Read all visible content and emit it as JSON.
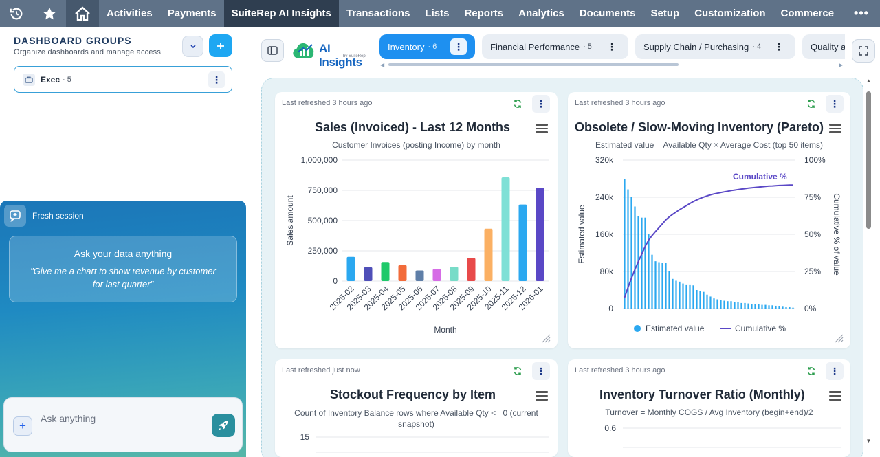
{
  "nav": {
    "icons": [
      "history-icon",
      "star-icon",
      "home-icon"
    ],
    "items": [
      "Activities",
      "Payments",
      "SuiteRep AI Insights",
      "Transactions",
      "Lists",
      "Reports",
      "Analytics",
      "Documents",
      "Setup",
      "Customization",
      "Commerce"
    ],
    "active": "SuiteRep AI Insights",
    "more": "•••"
  },
  "sidebar": {
    "title": "DASHBOARD GROUPS",
    "subtitle": "Organize dashboards and manage access",
    "groups": [
      {
        "name": "Exec",
        "count": "· 5"
      }
    ]
  },
  "chat": {
    "session_label": "Fresh session",
    "prompt_title": "Ask your data anything",
    "prompt_example": "\"Give me a chart to show revenue by customer for last quarter\"",
    "input_placeholder": "Ask anything"
  },
  "brand": {
    "name": "AI Insights",
    "sub": "by SuiteRep"
  },
  "tabs": [
    {
      "label": "Inventory",
      "count": "· 6",
      "active": true
    },
    {
      "label": "Financial Performance",
      "count": "· 5",
      "active": false
    },
    {
      "label": "Supply Chain / Purchasing",
      "count": "· 4",
      "active": false
    },
    {
      "label": "Quality a",
      "count": "",
      "active": false
    }
  ],
  "cards": [
    {
      "refreshed": "Last refreshed 3 hours ago",
      "title": "Sales (Invoiced) - Last 12 Months",
      "subtitle": "Customer Invoices (posting Income) by month"
    },
    {
      "refreshed": "Last refreshed 3 hours ago",
      "title": "Obsolete / Slow-Moving Inventory (Pareto)",
      "subtitle": "Estimated value = Available Qty × Average Cost (top 50 items)"
    },
    {
      "refreshed": "Last refreshed just now",
      "title": "Stockout Frequency by Item",
      "subtitle": "Count of Inventory Balance rows where Available Qty <= 0 (current snapshot)"
    },
    {
      "refreshed": "Last refreshed 3 hours ago",
      "title": "Inventory Turnover Ratio (Monthly)",
      "subtitle": "Turnover = Monthly COGS / Avg Inventory (begin+end)/2"
    }
  ],
  "chart_data": [
    {
      "type": "bar",
      "title": "Sales (Invoiced) - Last 12 Months",
      "subtitle": "Customer Invoices (posting Income) by month",
      "xlabel": "Month",
      "ylabel": "Sales amount",
      "categories": [
        "2025-02",
        "2025-03",
        "2025-04",
        "2025-05",
        "2025-06",
        "2025-07",
        "2025-08",
        "2025-09",
        "2025-10",
        "2025-11",
        "2025-12",
        "2026-01"
      ],
      "values": [
        200000,
        115000,
        158000,
        132000,
        88000,
        100000,
        118000,
        190000,
        433000,
        858000,
        633000,
        772000
      ],
      "colors": [
        "#2ba8f0",
        "#4f4fb8",
        "#1fc96a",
        "#f26b3a",
        "#5f7fa8",
        "#d66ce6",
        "#78dcc8",
        "#e84a4a",
        "#fbb063",
        "#7fe0d6",
        "#2ba8f0",
        "#5a48c6"
      ],
      "ylim": [
        0,
        1000000
      ],
      "yticks": [
        "1,000,000",
        "750,000",
        "500,000",
        "250,000",
        "0"
      ],
      "grid": true
    },
    {
      "type": "bar",
      "title": "Obsolete / Slow-Moving Inventory (Pareto)",
      "subtitle": "Estimated value = Available Qty × Average Cost (top 50 items)",
      "ylabel": "Estimated value",
      "y2label": "Cumulative % of value",
      "ylim": [
        0,
        320000
      ],
      "y2lim": [
        0,
        100
      ],
      "yticks": [
        "320k",
        "240k",
        "160k",
        "80k",
        "0"
      ],
      "y2ticks": [
        "100%",
        "75%",
        "50%",
        "25%",
        "0%"
      ],
      "series": [
        {
          "name": "Estimated value",
          "type": "bar",
          "color": "#2ba8f0",
          "values": [
            280000,
            257000,
            240000,
            220000,
            200000,
            196000,
            196000,
            160000,
            116000,
            102000,
            100000,
            98000,
            98000,
            80000,
            64000,
            60000,
            58000,
            54000,
            52000,
            52000,
            50000,
            40000,
            38000,
            36000,
            30000,
            26000,
            22000,
            20000,
            18000,
            17000,
            16000,
            16000,
            14000,
            14000,
            12000,
            12000,
            11000,
            10000,
            9000,
            9000,
            8000,
            8000,
            7000,
            7000,
            6000,
            5000,
            4000,
            3000,
            3000,
            2000
          ]
        },
        {
          "name": "Cumulative %",
          "type": "line",
          "color": "#5a48c6",
          "values": [
            7.4,
            14.2,
            20.5,
            26.3,
            31.6,
            36.7,
            41.9,
            46.1,
            49.2,
            51.9,
            54.5,
            57.1,
            59.7,
            61.8,
            63.5,
            65.1,
            66.6,
            68.0,
            69.4,
            70.8,
            72.1,
            73.2,
            74.2,
            75.1,
            75.9,
            76.6,
            77.2,
            77.7,
            78.2,
            78.6,
            79.0,
            79.5,
            79.8,
            80.2,
            80.5,
            80.8,
            81.1,
            81.4,
            81.6,
            81.8,
            82.1,
            82.3,
            82.5,
            82.6,
            82.8,
            82.9,
            83.0,
            83.1,
            83.2,
            83.2
          ]
        }
      ],
      "annotation": "Cumulative %",
      "legend": "bottom",
      "grid": true
    },
    {
      "type": "bar",
      "title": "Stockout Frequency by Item",
      "subtitle": "Count of Inventory Balance rows where Available Qty <= 0 (current snapshot)",
      "yticks": [
        "15"
      ]
    },
    {
      "type": "line",
      "title": "Inventory Turnover Ratio (Monthly)",
      "subtitle": "Turnover = Monthly COGS / Avg Inventory (begin+end)/2",
      "yticks": [
        "0.6"
      ]
    }
  ]
}
